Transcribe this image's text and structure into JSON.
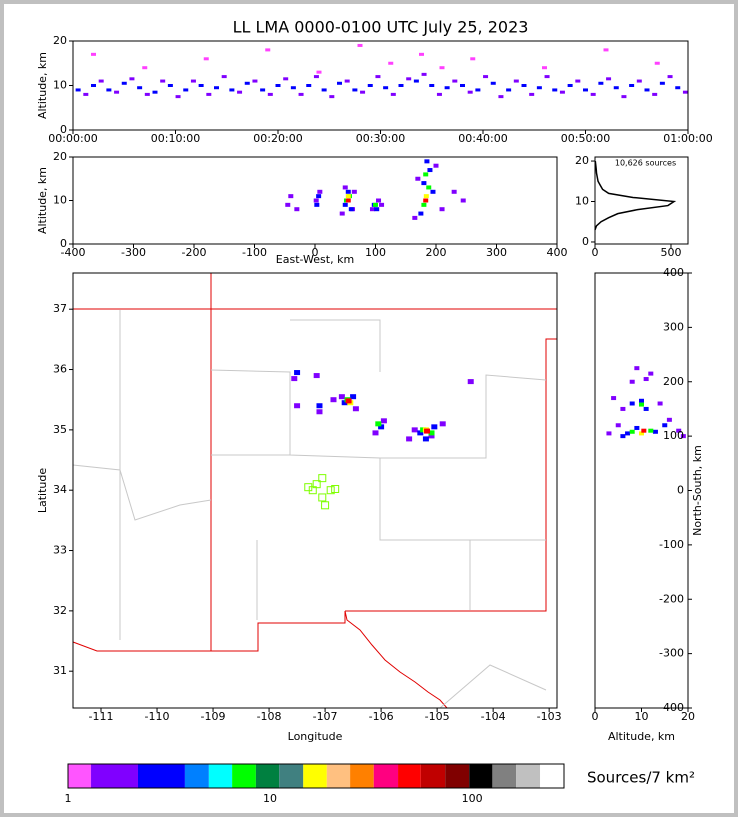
{
  "chart_data": [
    {
      "type": "scatter",
      "title": "LL LMA 0000-0100 UTC July 25, 2023",
      "ylabel": "Altitude, km",
      "xlim": [
        0,
        60
      ],
      "ylim": [
        0,
        20
      ],
      "xticks": [
        {
          "value": 0,
          "label": "00:00:00"
        },
        {
          "value": 10,
          "label": "00:10:00"
        },
        {
          "value": 20,
          "label": "00:20:00"
        },
        {
          "value": 30,
          "label": "00:30:00"
        },
        {
          "value": 40,
          "label": "00:40:00"
        },
        {
          "value": 50,
          "label": "00:50:00"
        },
        {
          "value": 60,
          "label": "01:00:00"
        }
      ],
      "yticks": [
        0,
        10,
        20
      ],
      "density": [
        {
          "color": "#0000ff",
          "x": [
            0.5,
            2,
            3.5,
            5,
            6.5,
            8,
            9.5,
            11,
            12.5,
            14,
            15.5,
            17,
            18.5,
            20,
            21.5,
            23,
            24.5,
            26,
            27.5,
            29,
            30.5,
            32,
            33.5,
            35,
            36.5,
            38,
            39.5,
            41,
            42.5,
            44,
            45.5,
            47,
            48.5,
            50,
            51.5,
            53,
            54.5,
            56,
            57.5,
            59
          ],
          "y": [
            9,
            10,
            9,
            10.5,
            9.5,
            8.5,
            10,
            9,
            10,
            9.5,
            9,
            10.5,
            9,
            10,
            9.5,
            10,
            9,
            10.5,
            9,
            10,
            9.5,
            10,
            11,
            10,
            9.5,
            10,
            9,
            10.5,
            9,
            10,
            9.5,
            9,
            10,
            9,
            10.5,
            9.5,
            10,
            9,
            10.5,
            9.5
          ]
        },
        {
          "color": "#8000ff",
          "x": [
            1.25,
            2.75,
            4.25,
            5.75,
            7.25,
            8.75,
            10.25,
            11.75,
            13.25,
            14.75,
            16.25,
            17.75,
            19.25,
            20.75,
            22.25,
            23.75,
            25.25,
            26.75,
            28.25,
            29.75,
            31.25,
            32.75,
            34.25,
            35.75,
            37.25,
            38.75,
            40.25,
            41.75,
            43.25,
            44.75,
            46.25,
            47.75,
            49.25,
            50.75,
            52.25,
            53.75,
            55.25,
            56.75,
            58.25,
            59.75
          ],
          "y": [
            8,
            11,
            8.5,
            11.5,
            8,
            11,
            7.5,
            11,
            8,
            12,
            8.5,
            11,
            8,
            11.5,
            8,
            12,
            7.5,
            11,
            8.5,
            12,
            8,
            11.5,
            12.5,
            8,
            11,
            8.5,
            12,
            7.5,
            11,
            8,
            12,
            8.5,
            11,
            8,
            11.5,
            7.5,
            11,
            8,
            12,
            8.5
          ]
        },
        {
          "color": "#ff40ff",
          "x": [
            2,
            7,
            13,
            19,
            24,
            28,
            31,
            34,
            36,
            39,
            46,
            52,
            57
          ],
          "y": [
            17,
            14,
            16,
            18,
            13,
            19,
            15,
            17,
            14,
            16,
            14,
            18,
            15
          ]
        }
      ]
    },
    {
      "type": "scatter",
      "xlabel": "East-West, km",
      "ylabel": "Altitude, km",
      "xlim": [
        -400,
        400
      ],
      "ylim": [
        0,
        20
      ],
      "xticks": [
        -400,
        -300,
        -200,
        -100,
        0,
        100,
        200,
        300,
        400
      ],
      "yticks": [
        0,
        10,
        20
      ],
      "density": [
        {
          "color": "#8000ff",
          "x": [
            -45,
            -40,
            -30,
            2,
            8,
            45,
            50,
            62,
            65,
            95,
            105,
            110,
            165,
            170,
            200,
            210,
            230,
            245
          ],
          "y": [
            9,
            11,
            8,
            10,
            12,
            7,
            13,
            8,
            12,
            8,
            10,
            9,
            6,
            15,
            18,
            8,
            12,
            10
          ]
        },
        {
          "color": "#0000ff",
          "x": [
            3,
            6,
            50,
            55,
            60,
            98,
            102,
            175,
            180,
            190,
            195,
            185
          ],
          "y": [
            9,
            11,
            9,
            12,
            8,
            9,
            8,
            7,
            14,
            17,
            12,
            19
          ]
        },
        {
          "color": "#00ff00",
          "x": [
            52,
            57,
            100,
            180,
            188,
            183
          ],
          "y": [
            10,
            11,
            9,
            9,
            13,
            16
          ]
        },
        {
          "color": "#ffff00",
          "x": [
            55,
            184
          ],
          "y": [
            11,
            11
          ]
        },
        {
          "color": "#ff0000",
          "x": [
            55,
            183
          ],
          "y": [
            10,
            10
          ]
        }
      ]
    },
    {
      "type": "line",
      "annotation": "10,626 sources",
      "xlim": [
        0,
        612
      ],
      "ylim": [
        -0.5,
        21
      ],
      "xticks": [
        0,
        500
      ],
      "yticks": [
        0,
        10,
        20
      ],
      "x": [
        0,
        10,
        40,
        90,
        150,
        280,
        480,
        520,
        250,
        90,
        50,
        35,
        20,
        15,
        10,
        8,
        5,
        2
      ],
      "y": [
        3,
        4,
        5,
        6,
        7,
        8,
        9,
        10,
        11,
        12,
        13,
        14,
        15,
        16,
        17,
        18,
        19,
        20
      ],
      "color": "#000000"
    },
    {
      "type": "map",
      "xlabel": "Longitude",
      "ylabel": "Latitude",
      "xlim": [
        -111.5,
        -102.86
      ],
      "ylim": [
        30.39,
        37.6
      ],
      "xticks": [
        -111,
        -110,
        -109,
        -108,
        -107,
        -106,
        -105,
        -104,
        -103
      ],
      "yticks": [
        31,
        32,
        33,
        34,
        35,
        36,
        37
      ],
      "density": [
        {
          "color": "#8000ff",
          "x": [
            -107.55,
            -107.1,
            -106.7,
            -106.45,
            -106.1,
            -105.95,
            -105.5,
            -105.1,
            -104.9,
            -104.4,
            -107.5,
            -107.15,
            -106.85,
            -105.4
          ],
          "y": [
            35.85,
            35.3,
            35.55,
            35.35,
            34.95,
            35.15,
            34.85,
            34.9,
            35.1,
            35.8,
            35.4,
            35.9,
            35.5,
            35.0
          ]
        },
        {
          "color": "#0000ff",
          "x": [
            -107.5,
            -107.1,
            -106.65,
            -106.5,
            -106.0,
            -105.3,
            -105.05,
            -105.2
          ],
          "y": [
            35.95,
            35.4,
            35.45,
            35.55,
            35.05,
            34.95,
            35.05,
            34.85
          ]
        },
        {
          "color": "#00ff00",
          "x": [
            -106.6,
            -106.05,
            -105.25,
            -105.1
          ],
          "y": [
            35.5,
            35.1,
            35.0,
            34.95
          ]
        },
        {
          "color": "#ffff00",
          "x": [
            -106.55,
            -105.2
          ],
          "y": [
            35.45,
            35.0
          ]
        },
        {
          "color": "#ff0000",
          "x": [
            -106.58,
            -105.18
          ],
          "y": [
            35.48,
            34.98
          ]
        }
      ],
      "stations": {
        "color": "#7fff00",
        "x": [
          -107.3,
          -107.15,
          -107.05,
          -106.9,
          -107.05,
          -107.0,
          -106.82,
          -107.22
        ],
        "y": [
          34.05,
          34.1,
          34.2,
          34.0,
          33.88,
          33.75,
          34.02,
          34.0
        ]
      }
    },
    {
      "type": "scatter",
      "xlabel": "Altitude, km",
      "ylabel": "North-South, km",
      "yaxis": "right",
      "xlim": [
        0,
        20
      ],
      "ylim": [
        -400,
        400
      ],
      "xticks": [
        0,
        10,
        20
      ],
      "yticks": [
        -400,
        -300,
        -200,
        -100,
        0,
        100,
        200,
        300,
        400
      ],
      "density": [
        {
          "color": "#8000ff",
          "x": [
            3,
            5,
            18,
            16,
            8,
            12,
            4,
            19,
            14,
            9,
            11,
            6
          ],
          "y": [
            105,
            120,
            110,
            130,
            200,
            215,
            170,
            100,
            160,
            225,
            205,
            150
          ]
        },
        {
          "color": "#0000ff",
          "x": [
            6,
            9,
            13,
            15,
            8,
            11,
            10,
            7
          ],
          "y": [
            100,
            115,
            108,
            120,
            160,
            150,
            165,
            105
          ]
        },
        {
          "color": "#00ff00",
          "x": [
            8,
            12,
            10
          ],
          "y": [
            108,
            110,
            158
          ]
        },
        {
          "color": "#ffff00",
          "x": [
            10
          ],
          "y": [
            105
          ]
        },
        {
          "color": "#ff0000",
          "x": [
            10.5
          ],
          "y": [
            110
          ]
        }
      ]
    },
    {
      "type": "colorbar",
      "label": "Sources/7 km²",
      "log": true,
      "xlim": [
        1,
        285
      ],
      "xticks": [
        1,
        10,
        100
      ],
      "bounds": [
        1,
        1.3,
        2.22,
        3.79,
        4.98,
        6.49,
        8.51,
        11.1,
        14.6,
        19.1,
        24.9,
        32.6,
        43,
        55.7,
        73.6,
        96.8,
        126,
        165,
        217,
        285
      ],
      "colors": [
        "#ff55ff",
        "#8000ff",
        "#0000ff",
        "#0080ff",
        "#00ffff",
        "#00ff00",
        "#008040",
        "#408080",
        "#ffff00",
        "#ffc080",
        "#ff8000",
        "#ff0080",
        "#ff0000",
        "#c00000",
        "#800000",
        "#000000",
        "#808080",
        "#c0c0c0",
        "#ffffff"
      ]
    }
  ]
}
